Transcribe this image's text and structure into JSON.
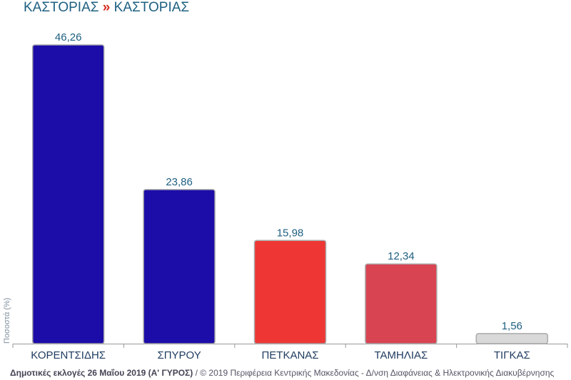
{
  "header": {
    "region": "ΚΑΣΤΟΡΙΑΣ",
    "separator": "»",
    "municipality": "ΚΑΣΤΟΡΙΑΣ"
  },
  "footer": {
    "bold": "Δημοτικές εκλογές 26 Μαΐου 2019 (Α' ΓΥΡΟΣ)",
    "rest": " / © 2019 Περιφέρεια Κεντρικής Μακεδονίας - Δ/νση Διαφάνειας & Ηλεκτρονικής Διακυβέρνησης"
  },
  "chart_data": {
    "type": "bar",
    "title": "ΚΑΣΤΟΡΙΑΣ » ΚΑΣΤΟΡΙΑΣ",
    "xlabel": "",
    "ylabel": "Ποσοστά (%)",
    "categories": [
      "ΚΟΡΕΝΤΣΙΔΗΣ",
      "ΣΠΥΡΟΥ",
      "ΠΕΤΚΑΝΑΣ",
      "ΤΑΜΗΛΙΑΣ",
      "ΤΙΓΚΑΣ"
    ],
    "values": [
      46.26,
      23.86,
      15.98,
      12.34,
      1.56
    ],
    "labels": [
      "46,26",
      "23,86",
      "15,98",
      "12,34",
      "1,56"
    ],
    "colors": [
      "#1c0ca8",
      "#1c0ca8",
      "#ee3734",
      "#d94452",
      "#d9d9d9"
    ],
    "ylim": [
      0,
      46.26
    ],
    "grid": false,
    "legend": "none"
  }
}
